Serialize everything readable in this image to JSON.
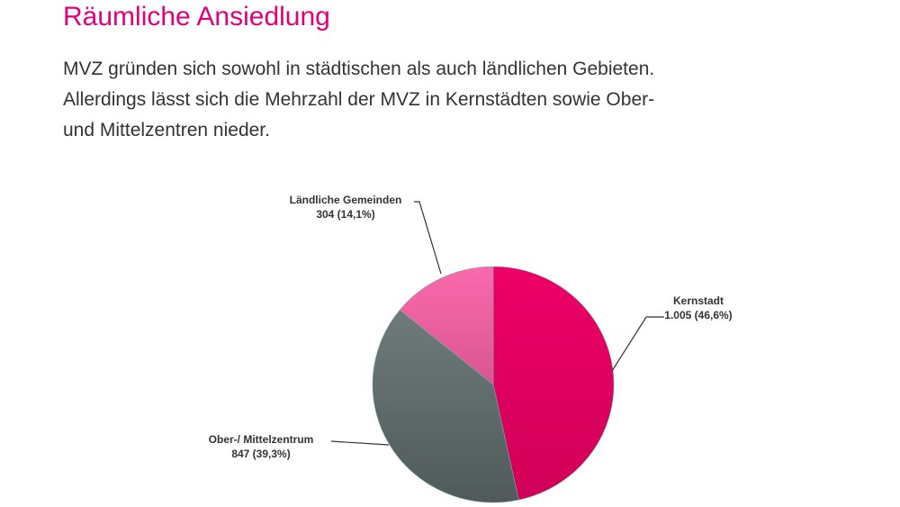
{
  "header": {
    "title": "Räumliche Ansiedlung"
  },
  "intro": {
    "lines": [
      "MVZ gründen sich sowohl in städtischen als auch ländlichen Gebieten.",
      "Allerdings lässt sich die Mehrzahl der MVZ in Kernstädten sowie Ober-",
      "und Mittelzentren nieder."
    ]
  },
  "chart_data": {
    "type": "pie",
    "title": "",
    "slices": [
      {
        "name": "Kernstadt",
        "value": 1005,
        "percent": 46.6,
        "label_value": "1.005 (46,6%)",
        "color": "#e6005f"
      },
      {
        "name": "Ober-/ Mittelzentrum",
        "value": 847,
        "percent": 39.3,
        "label_value": "847 (39,3%)",
        "color": "#5f6b6b"
      },
      {
        "name": "Ländliche Gemeinden",
        "value": 304,
        "percent": 14.1,
        "label_value": "304 (14,1%)",
        "color": "#f060a0"
      }
    ]
  }
}
